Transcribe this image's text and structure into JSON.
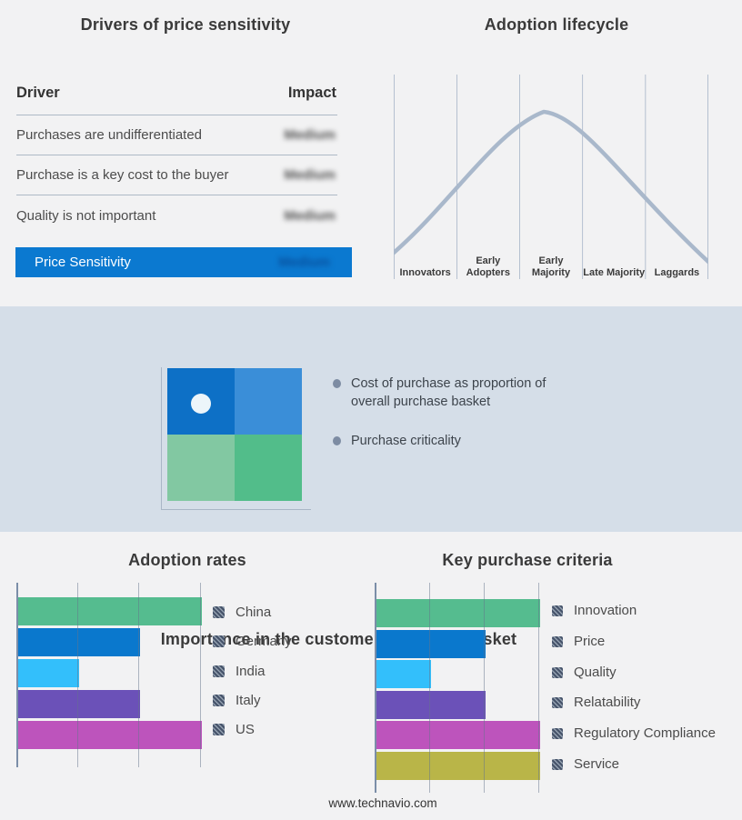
{
  "page": {
    "footer_url": "www.technavio.com",
    "background": "#f2f2f3",
    "band_background": "#d5dee8"
  },
  "drivers": {
    "title": "Drivers of price sensitivity",
    "columns": {
      "driver": "Driver",
      "impact": "Impact"
    },
    "rows": [
      {
        "driver": "Purchases are undifferentiated",
        "impact": "Medium",
        "impact_blurred": true
      },
      {
        "driver": "Purchase is a key cost to the buyer",
        "impact": "Medium",
        "impact_blurred": true
      },
      {
        "driver": "Quality is not important",
        "impact": "Medium",
        "impact_blurred": true
      }
    ],
    "highlight": {
      "label": "Price Sensitivity",
      "impact": "Medium",
      "impact_blurred": true,
      "background": "#0b79d0"
    }
  },
  "lifecycle": {
    "title": "Adoption lifecycle",
    "stages": [
      "Innovators",
      "Early Adopters",
      "Early Majority",
      "Late Majority",
      "Laggards"
    ],
    "curve_color": "#a9b8cb",
    "gridline_color": "#b5c0d0"
  },
  "basket": {
    "title": "Importance in the customer purchase basket",
    "bullets": [
      "Cost of purchase as proportion of overall purchase basket",
      "Purchase criticality"
    ],
    "bullet_color": "#7d8ca3",
    "quadrant_colors": {
      "top_left": "#0d70c6",
      "top_right": "#3a8ed8",
      "bottom_left": "#82c8a2",
      "bottom_right": "#52bd8a"
    },
    "marker_color": "#ecf5fa"
  },
  "chart_data": [
    {
      "name": "adoption_rates",
      "type": "bar",
      "orientation": "horizontal",
      "title": "Adoption rates",
      "categories": [
        "China",
        "Germany",
        "India",
        "Italy",
        "US"
      ],
      "values": [
        3,
        2,
        1,
        2,
        3
      ],
      "colors": [
        "#55bc8f",
        "#0a78cd",
        "#33bffb",
        "#6b51b8",
        "#bd54bc"
      ],
      "xlim": [
        0,
        3
      ],
      "xticks": [
        1,
        2,
        3
      ],
      "grid": true,
      "legend_position": "right"
    },
    {
      "name": "key_purchase_criteria",
      "type": "bar",
      "orientation": "horizontal",
      "title": "Key purchase criteria",
      "categories": [
        "Innovation",
        "Price",
        "Quality",
        "Relatability",
        "Regulatory Compliance",
        "Service"
      ],
      "values": [
        3,
        2,
        1,
        2,
        3,
        3
      ],
      "colors": [
        "#55bc8f",
        "#0a78cd",
        "#33bffb",
        "#6b51b8",
        "#bd54bc",
        "#b9b548"
      ],
      "xlim": [
        0,
        3
      ],
      "xticks": [
        1,
        2,
        3
      ],
      "grid": true,
      "legend_position": "right"
    },
    {
      "name": "adoption_lifecycle",
      "type": "line",
      "title": "Adoption lifecycle",
      "x": [
        "Innovators",
        "Early Adopters",
        "Early Majority",
        "Late Majority",
        "Laggards"
      ],
      "description": "Bell curve rising from Innovators, peaking over Early Majority, descending to Laggards",
      "curve_points_relative": [
        [
          0.0,
          0.13
        ],
        [
          0.2,
          0.44
        ],
        [
          0.35,
          0.74
        ],
        [
          0.48,
          0.82
        ],
        [
          0.62,
          0.66
        ],
        [
          0.8,
          0.38
        ],
        [
          1.0,
          0.09
        ]
      ]
    }
  ]
}
